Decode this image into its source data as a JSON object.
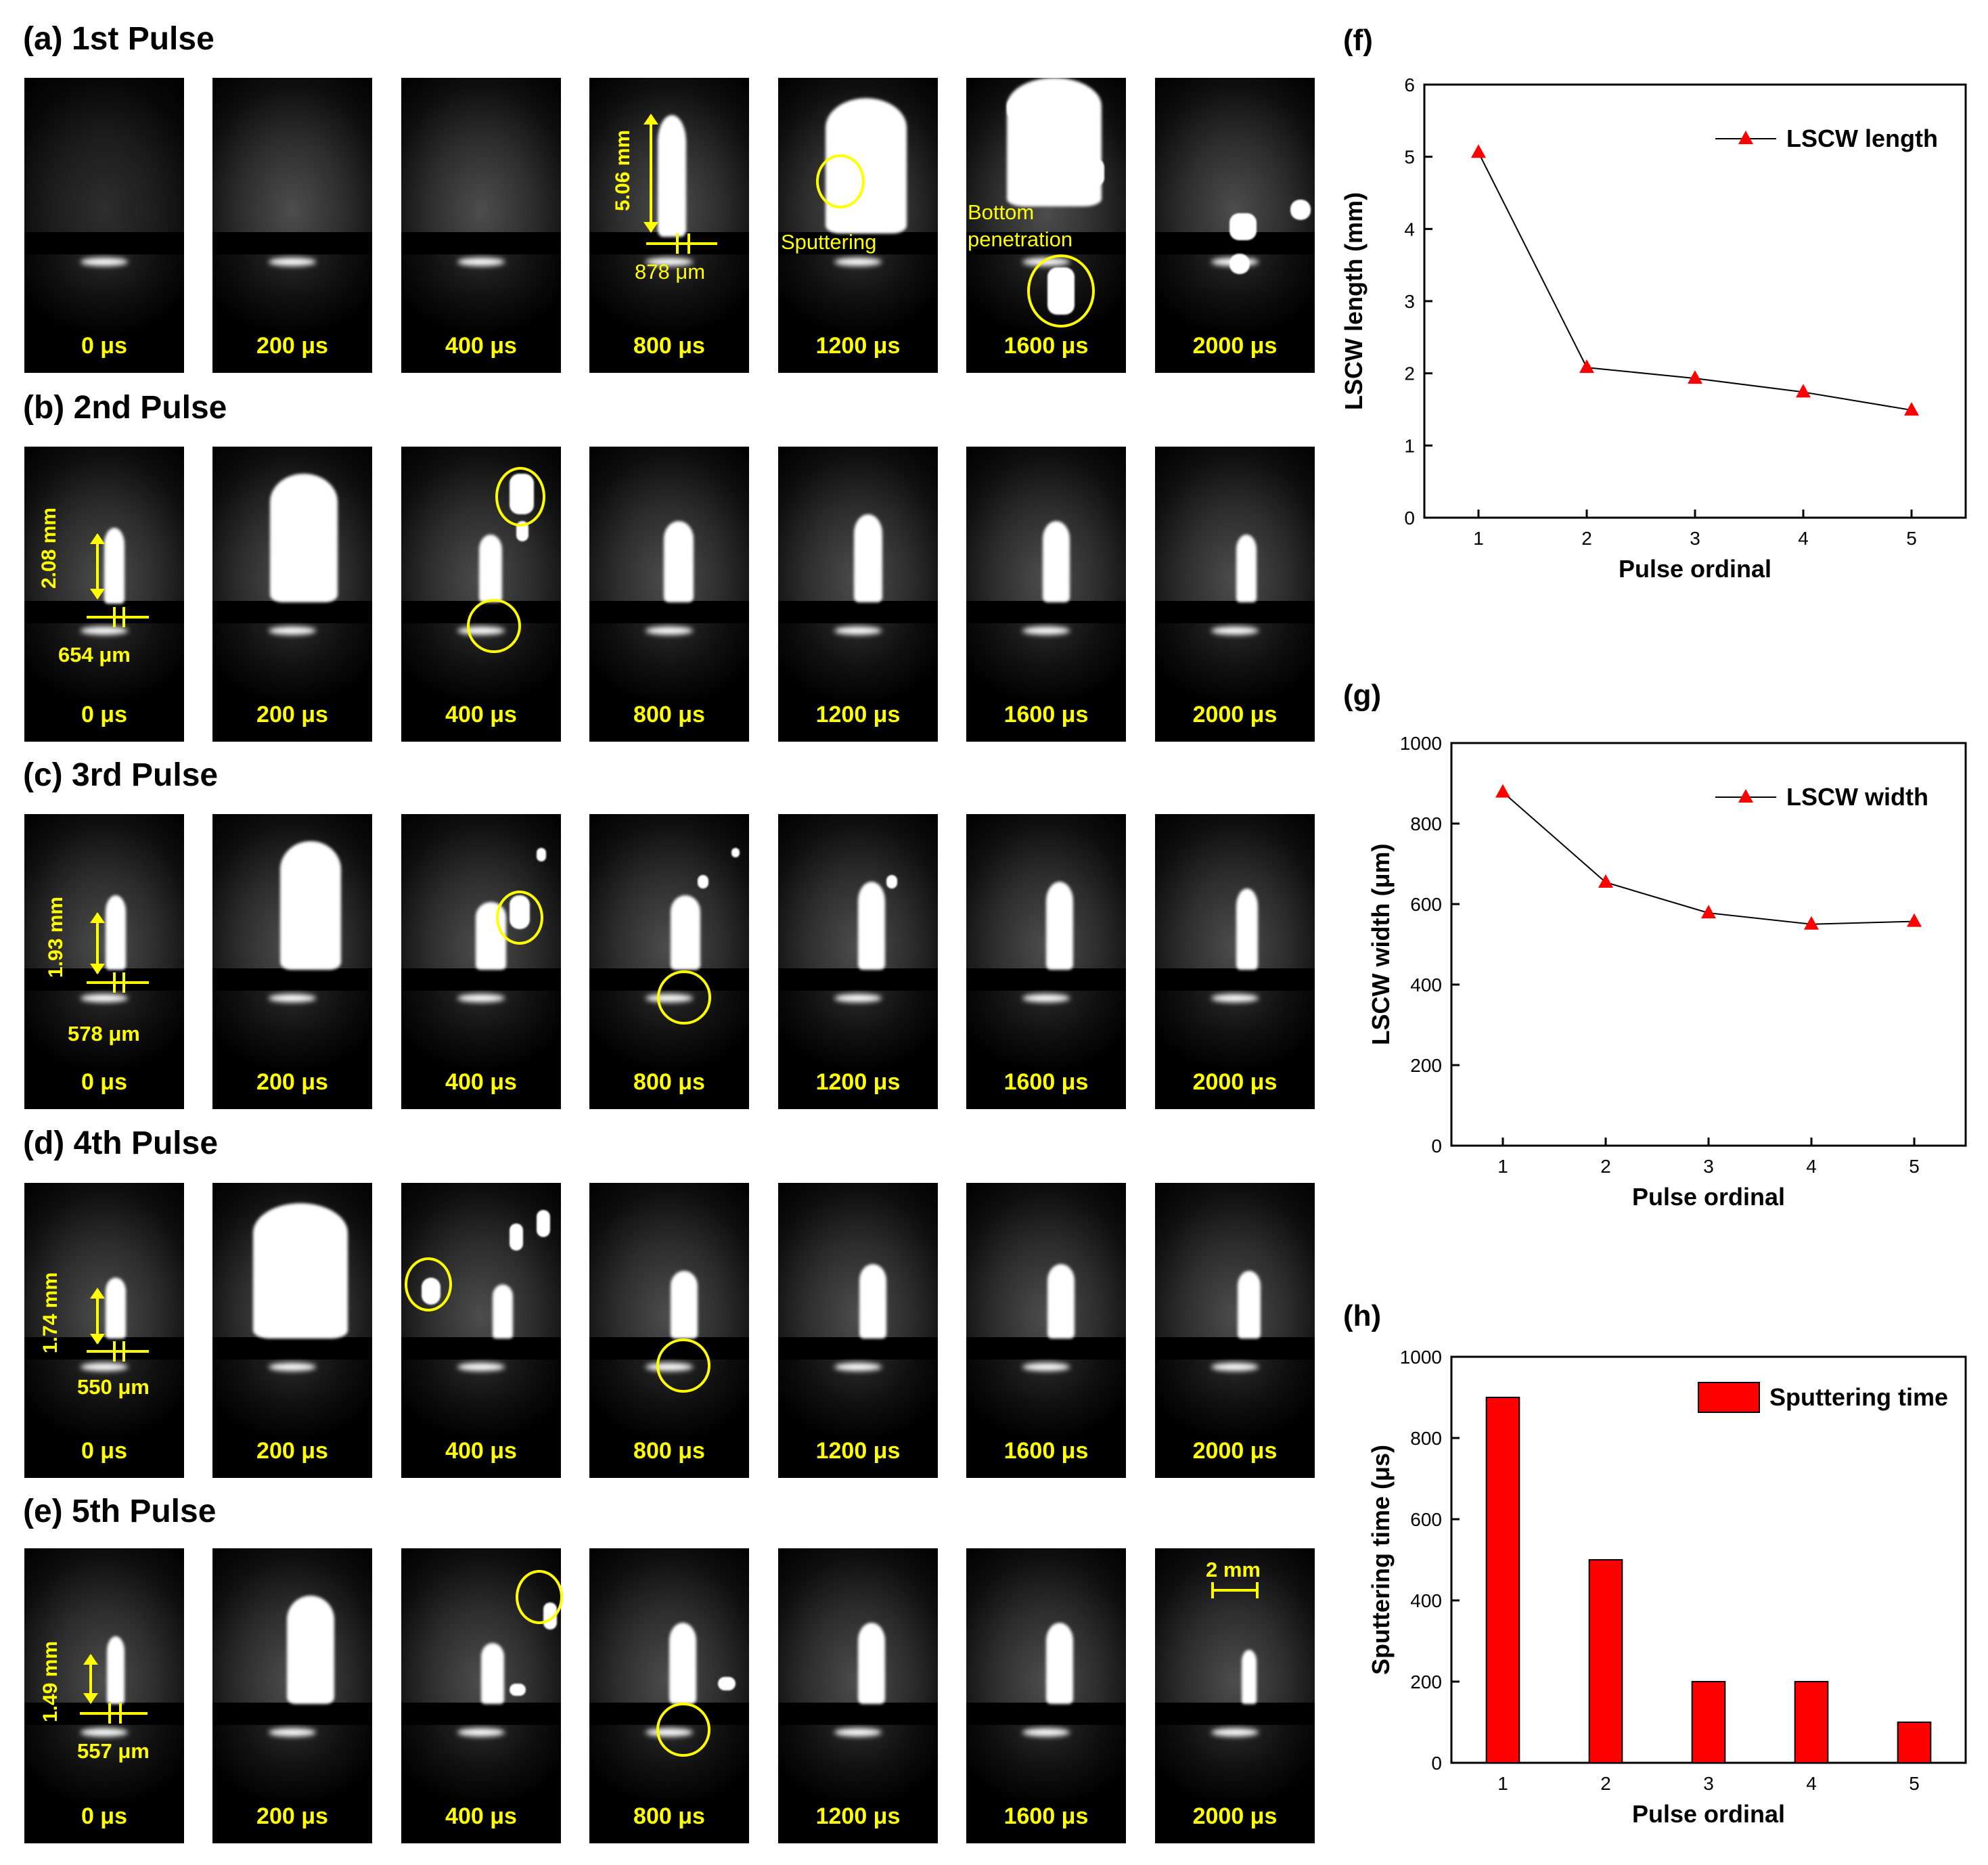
{
  "rows": [
    {
      "title": "(a) 1st Pulse"
    },
    {
      "title": "(b) 2nd Pulse"
    },
    {
      "title": "(c) 3rd Pulse"
    },
    {
      "title": "(d) 4th Pulse"
    },
    {
      "title": "(e) 5th Pulse"
    }
  ],
  "frame_times": [
    "0 μs",
    "200 μs",
    "400 μs",
    "800 μs",
    "1200 μs",
    "1600 μs",
    "2000 μs"
  ],
  "annotations": {
    "length_a": "5.06 mm",
    "width_a": "878 μm",
    "sputtering": "Sputtering",
    "bottom_1": "Bottom",
    "bottom_2": "penetration",
    "length_b": "2.08 mm",
    "width_b": "654 μm",
    "length_c": "1.93 mm",
    "width_c": "578 μm",
    "length_d": "1.74 mm",
    "width_d": "550 μm",
    "length_e": "1.49 mm",
    "width_e": "557 μm",
    "scale": "2 mm"
  },
  "colors": {
    "annotation": "#ffff00",
    "marker": "#ff0000",
    "line": "#000000"
  },
  "chart_data": [
    {
      "panel": "(f)",
      "type": "line",
      "x": [
        1,
        2,
        3,
        4,
        5
      ],
      "series": [
        {
          "name": "LSCW length",
          "values": [
            5.06,
            2.08,
            1.93,
            1.74,
            1.49
          ]
        }
      ],
      "xlabel": "Pulse ordinal",
      "ylabel": "LSCW length (mm)",
      "xlim": [
        0.5,
        5.5
      ],
      "ylim": [
        0,
        6
      ],
      "yticks": [
        0,
        1,
        2,
        3,
        4,
        5,
        6
      ],
      "xticks": [
        1,
        2,
        3,
        4,
        5
      ],
      "legend": "top-right"
    },
    {
      "panel": "(g)",
      "type": "line",
      "x": [
        1,
        2,
        3,
        4,
        5
      ],
      "series": [
        {
          "name": "LSCW width",
          "values": [
            878,
            654,
            578,
            550,
            557
          ]
        }
      ],
      "xlabel": "Pulse ordinal",
      "ylabel": "LSCW width (μm)",
      "xlim": [
        0.5,
        5.5
      ],
      "ylim": [
        0,
        1000
      ],
      "yticks": [
        0,
        200,
        400,
        600,
        800,
        1000
      ],
      "xticks": [
        1,
        2,
        3,
        4,
        5
      ],
      "legend": "top-right"
    },
    {
      "panel": "(h)",
      "type": "bar",
      "x": [
        1,
        2,
        3,
        4,
        5
      ],
      "series": [
        {
          "name": "Sputtering time",
          "values": [
            900,
            500,
            200,
            200,
            100
          ]
        }
      ],
      "xlabel": "Pulse ordinal",
      "ylabel": "Sputtering time (μs)",
      "xlim": [
        0.5,
        5.5
      ],
      "ylim": [
        0,
        1000
      ],
      "yticks": [
        0,
        200,
        400,
        600,
        800,
        1000
      ],
      "xticks": [
        1,
        2,
        3,
        4,
        5
      ],
      "legend": "top-right"
    }
  ]
}
